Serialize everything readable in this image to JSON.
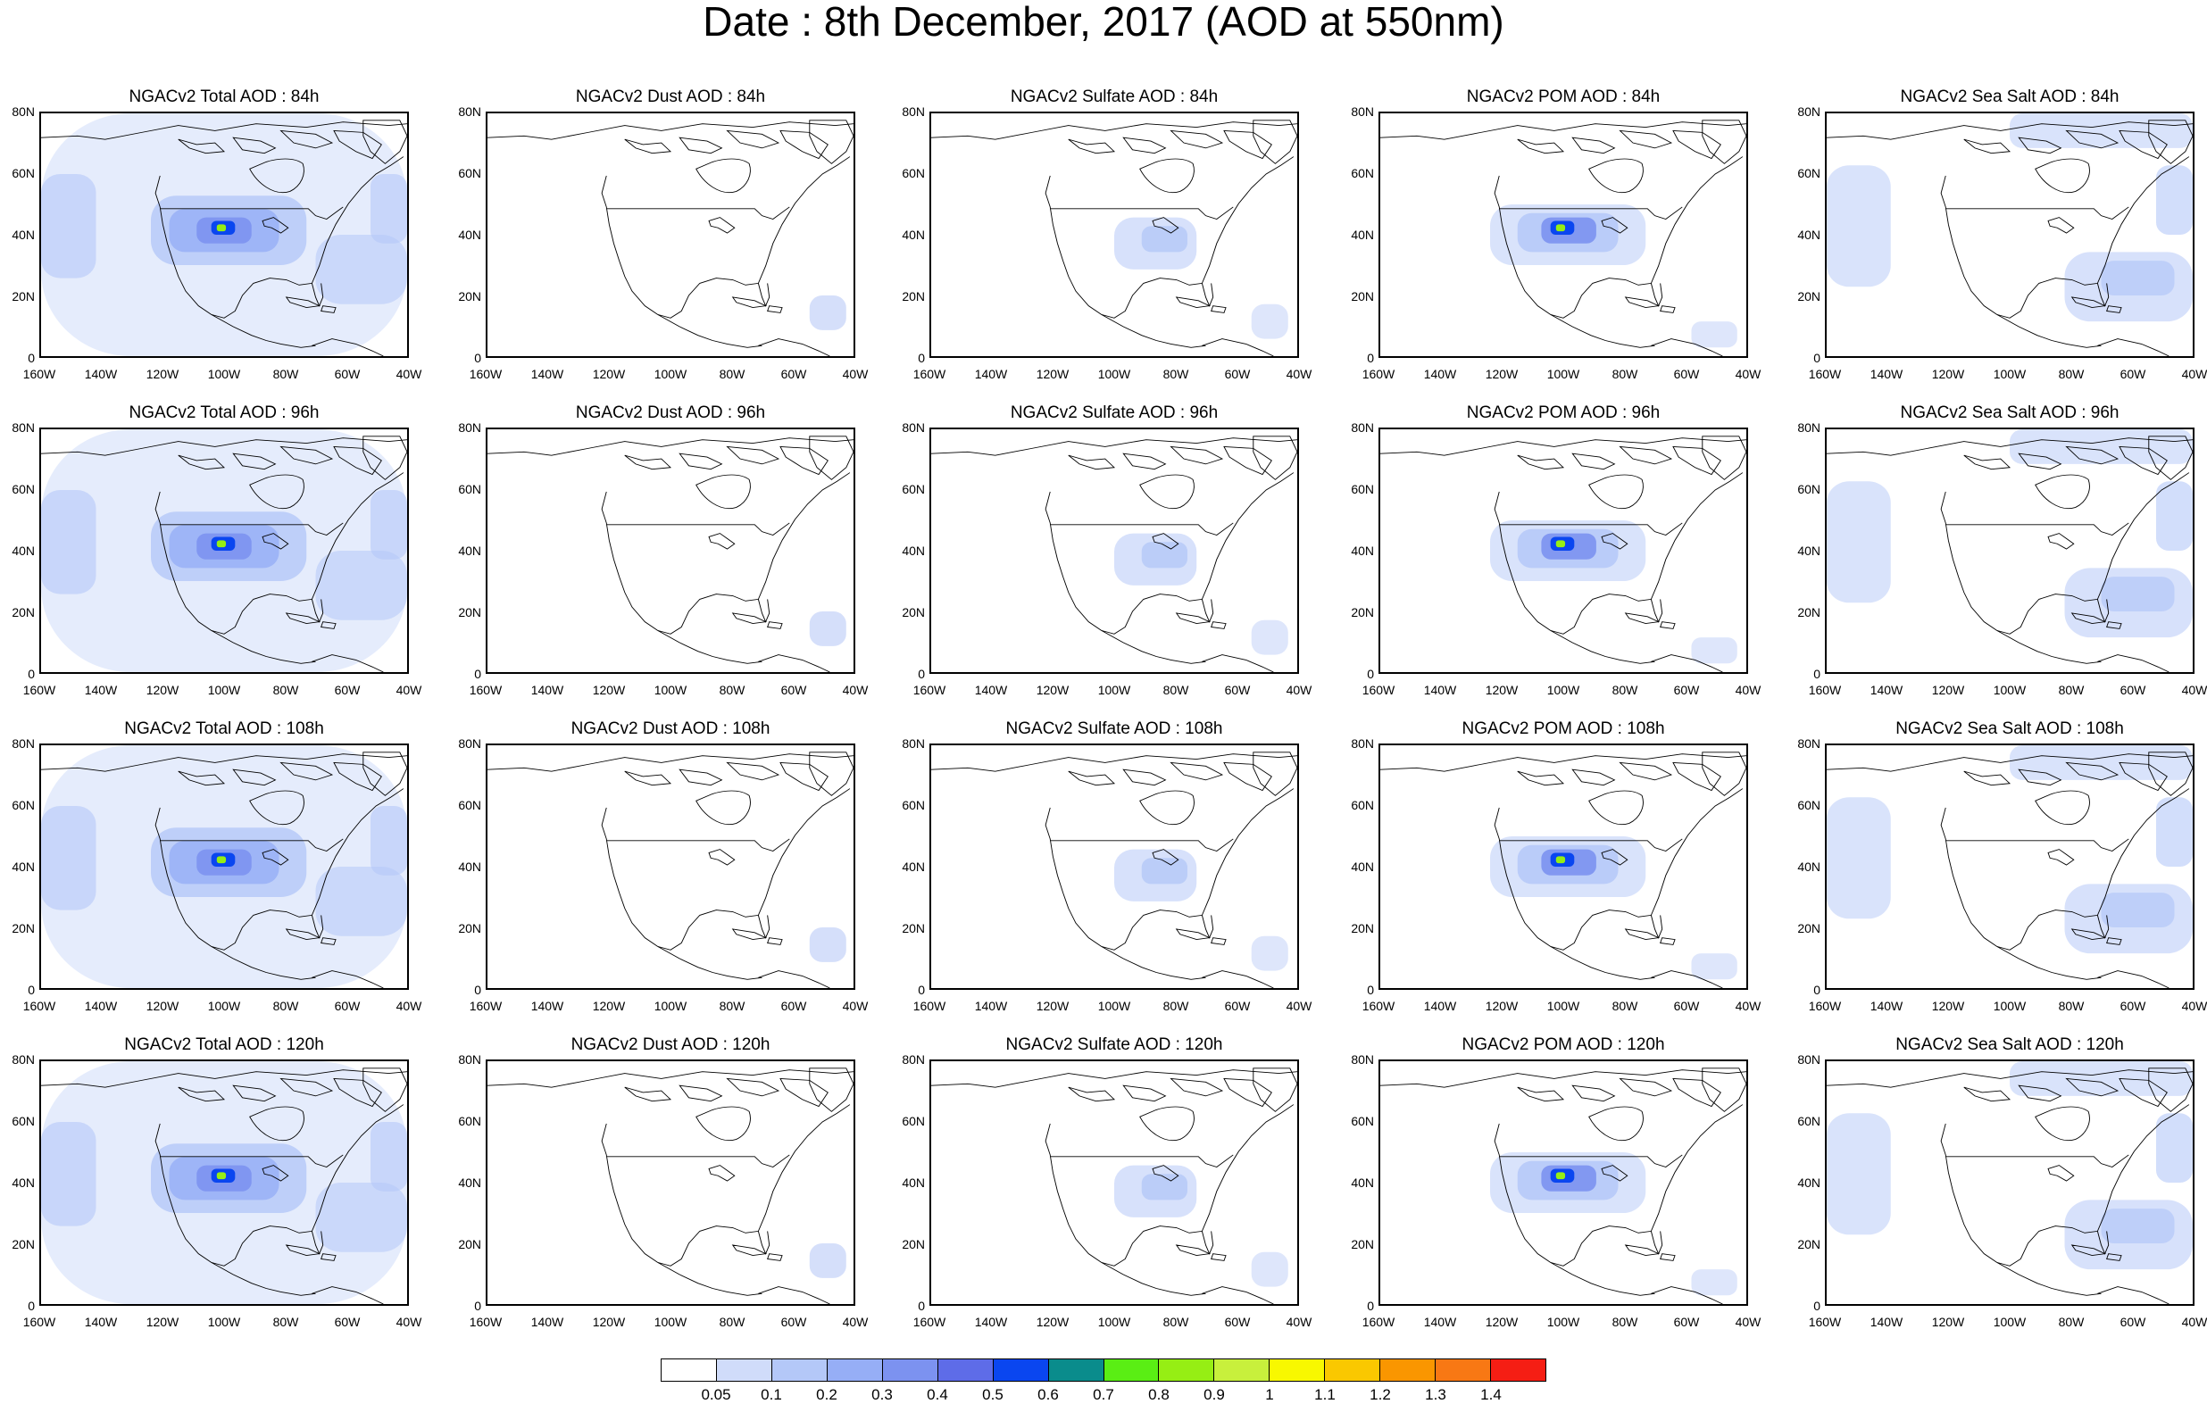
{
  "title": "Date : 8th December, 2017 (AOD at 550nm)",
  "y_tick_labels": [
    "80N",
    "60N",
    "40N",
    "20N",
    "0"
  ],
  "x_tick_labels": [
    "160W",
    "140W",
    "120W",
    "100W",
    "80W",
    "60W",
    "40W"
  ],
  "colorbar": {
    "colors": [
      "#ffffff",
      "#d0dcfa",
      "#b4c8f8",
      "#96aef6",
      "#7c92f0",
      "#5e6ce8",
      "#0a46f0",
      "#0a8c8c",
      "#5aee14",
      "#96ee14",
      "#c8f03c",
      "#f8f800",
      "#fac800",
      "#fa9600",
      "#f87814",
      "#f51e14"
    ],
    "labels": [
      "0.05",
      "0.1",
      "0.2",
      "0.3",
      "0.4",
      "0.5",
      "0.6",
      "0.7",
      "0.8",
      "0.9",
      "1",
      "1.1",
      "1.2",
      "1.3",
      "1.4"
    ]
  },
  "panels": [
    {
      "title": "NGACv2 Total AOD : 84h",
      "species": "total",
      "hour": 84
    },
    {
      "title": "NGACv2 Dust AOD : 84h",
      "species": "dust",
      "hour": 84
    },
    {
      "title": "NGACv2 Sulfate AOD : 84h",
      "species": "sulfate",
      "hour": 84
    },
    {
      "title": "NGACv2 POM AOD : 84h",
      "species": "pom",
      "hour": 84
    },
    {
      "title": "NGACv2 Sea Salt AOD : 84h",
      "species": "seasalt",
      "hour": 84
    },
    {
      "title": "NGACv2 Total AOD : 96h",
      "species": "total",
      "hour": 96
    },
    {
      "title": "NGACv2 Dust AOD : 96h",
      "species": "dust",
      "hour": 96
    },
    {
      "title": "NGACv2 Sulfate AOD : 96h",
      "species": "sulfate",
      "hour": 96
    },
    {
      "title": "NGACv2 POM AOD : 96h",
      "species": "pom",
      "hour": 96
    },
    {
      "title": "NGACv2 Sea Salt AOD : 96h",
      "species": "seasalt",
      "hour": 96
    },
    {
      "title": "NGACv2 Total AOD : 108h",
      "species": "total",
      "hour": 108
    },
    {
      "title": "NGACv2 Dust AOD : 108h",
      "species": "dust",
      "hour": 108
    },
    {
      "title": "NGACv2 Sulfate AOD : 108h",
      "species": "sulfate",
      "hour": 108
    },
    {
      "title": "NGACv2 POM AOD : 108h",
      "species": "pom",
      "hour": 108
    },
    {
      "title": "NGACv2 Sea Salt AOD : 108h",
      "species": "seasalt",
      "hour": 108
    },
    {
      "title": "NGACv2 Total AOD : 120h",
      "species": "total",
      "hour": 120
    },
    {
      "title": "NGACv2 Dust AOD : 120h",
      "species": "dust",
      "hour": 120
    },
    {
      "title": "NGACv2 Sulfate AOD : 120h",
      "species": "sulfate",
      "hour": 120
    },
    {
      "title": "NGACv2 POM AOD : 120h",
      "species": "pom",
      "hour": 120
    },
    {
      "title": "NGACv2 Sea Salt  AOD : 120h",
      "species": "seasalt",
      "hour": 120
    }
  ]
}
